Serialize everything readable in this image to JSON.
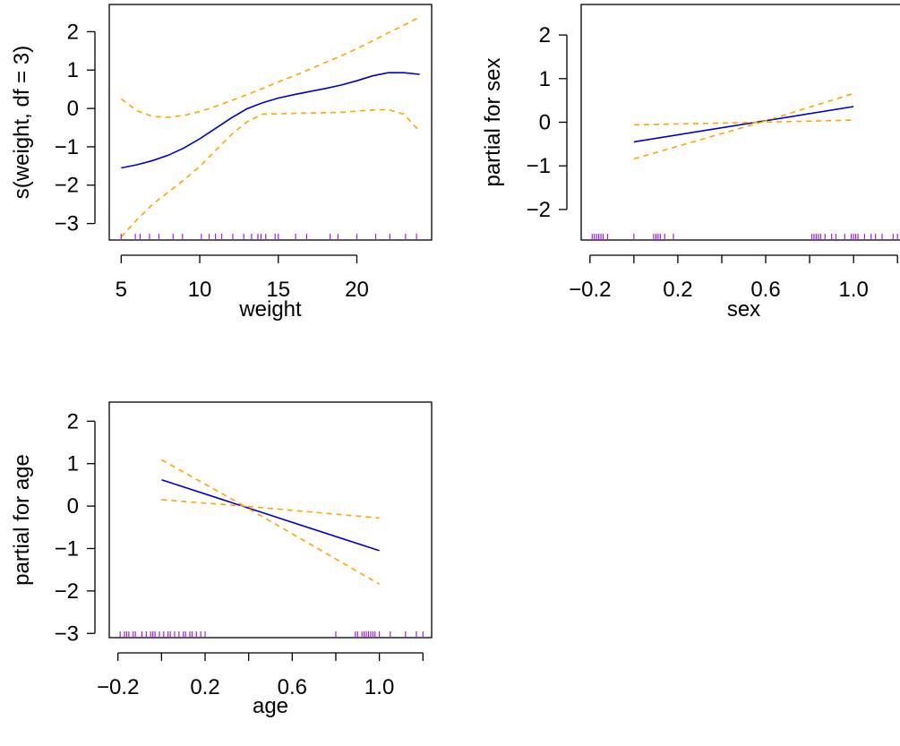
{
  "colors": {
    "fit": "#0000CD",
    "band": "#FFA500",
    "rug": "#A020F0",
    "axis": "#000000"
  },
  "chart_data": [
    {
      "type": "line",
      "xlabel": "weight",
      "ylabel": "s(weight, df = 3)",
      "xlim": [
        4.24,
        24.76
      ],
      "ylim": [
        -3.43,
        2.71
      ],
      "xticks": [
        5,
        10,
        15,
        20
      ],
      "xtick_labels": [
        "5",
        "10",
        "15",
        "20"
      ],
      "yticks": [
        -3,
        -2,
        -1,
        0,
        1,
        2
      ],
      "ytick_labels": [
        "−3",
        "−2",
        "−1",
        "0",
        "1",
        "2"
      ],
      "series": [
        {
          "role": "fit",
          "x": [
            5,
            6,
            7,
            8,
            9,
            10,
            11,
            12,
            13,
            14,
            15,
            16,
            17,
            18,
            19,
            20,
            21,
            22,
            23,
            24
          ],
          "y": [
            -1.55,
            -1.47,
            -1.36,
            -1.22,
            -1.03,
            -0.79,
            -0.52,
            -0.25,
            -0.01,
            0.15,
            0.27,
            0.36,
            0.44,
            0.52,
            0.61,
            0.72,
            0.85,
            0.93,
            0.93,
            0.89
          ]
        },
        {
          "role": "upper",
          "x": [
            5,
            6,
            7,
            8,
            9,
            10,
            11,
            12,
            13,
            14,
            15,
            16,
            17,
            18,
            19,
            20,
            21,
            22,
            23,
            24
          ],
          "y": [
            0.25,
            -0.06,
            -0.21,
            -0.23,
            -0.18,
            -0.08,
            0.05,
            0.2,
            0.36,
            0.52,
            0.69,
            0.85,
            1.02,
            1.2,
            1.37,
            1.56,
            1.76,
            1.97,
            2.17,
            2.38
          ]
        },
        {
          "role": "lower",
          "x": [
            5,
            6,
            7,
            8,
            9,
            10,
            11,
            12,
            13,
            14,
            15,
            16,
            17,
            18,
            19,
            20,
            21,
            22,
            23,
            24
          ],
          "y": [
            -3.35,
            -2.9,
            -2.5,
            -2.18,
            -1.86,
            -1.51,
            -1.1,
            -0.69,
            -0.35,
            -0.15,
            -0.14,
            -0.13,
            -0.12,
            -0.11,
            -0.1,
            -0.07,
            -0.04,
            -0.03,
            -0.15,
            -0.6
          ]
        }
      ],
      "rug": [
        5.0,
        5.9,
        6.2,
        6.8,
        7.4,
        8.3,
        8.9,
        10.1,
        10.6,
        11.0,
        11.4,
        12.1,
        12.8,
        13.3,
        13.7,
        13.9,
        14.2,
        14.8,
        15.0,
        16.1,
        16.8,
        18.3,
        18.8,
        20.0,
        21.2,
        22.1,
        23.1,
        23.8
      ]
    },
    {
      "type": "line",
      "xlabel": "sex",
      "ylabel": "partial for sex",
      "xlim": [
        -0.24,
        1.24
      ],
      "ylim": [
        -2.7,
        2.7
      ],
      "xticks": [
        -0.2,
        0.0,
        0.2,
        0.4,
        0.6,
        0.8,
        1.0,
        1.2
      ],
      "xtick_labels": [
        "−0.2",
        "",
        "0.2",
        "",
        "0.6",
        "",
        "1.0",
        ""
      ],
      "yticks": [
        -2,
        -1,
        0,
        1,
        2
      ],
      "ytick_labels": [
        "−2",
        "−1",
        "0",
        "1",
        "2"
      ],
      "series": [
        {
          "role": "fit",
          "x": [
            0.0,
            1.0
          ],
          "y": [
            -0.45,
            0.36
          ]
        },
        {
          "role": "upper",
          "x": [
            0.0,
            0.58,
            1.0
          ],
          "y": [
            -0.06,
            0.0,
            0.66
          ]
        },
        {
          "role": "lower",
          "x": [
            0.0,
            0.58,
            1.0
          ],
          "y": [
            -0.84,
            0.0,
            0.05
          ]
        }
      ],
      "rug": [
        -0.19,
        -0.18,
        -0.17,
        -0.16,
        -0.15,
        -0.14,
        -0.12,
        0.0,
        0.09,
        0.1,
        0.11,
        0.12,
        0.14,
        0.18,
        0.81,
        0.82,
        0.83,
        0.84,
        0.85,
        0.87,
        0.9,
        0.92,
        0.96,
        0.99,
        1.0,
        1.01,
        1.02,
        1.05,
        1.08,
        1.1,
        1.13,
        1.18,
        1.2
      ]
    },
    {
      "type": "line",
      "xlabel": "age",
      "ylabel": "partial for age",
      "xlim": [
        -0.24,
        1.24
      ],
      "ylim": [
        -3.1,
        2.45
      ],
      "xticks": [
        -0.2,
        0.0,
        0.2,
        0.4,
        0.6,
        0.8,
        1.0,
        1.2
      ],
      "xtick_labels": [
        "−0.2",
        "",
        "0.2",
        "",
        "0.6",
        "",
        "1.0",
        ""
      ],
      "yticks": [
        -3,
        -2,
        -1,
        0,
        1,
        2
      ],
      "ytick_labels": [
        "−3",
        "−2",
        "−1",
        "0",
        "1",
        "2"
      ],
      "series": [
        {
          "role": "fit",
          "x": [
            0.0,
            1.0
          ],
          "y": [
            0.62,
            -1.05
          ]
        },
        {
          "role": "upper",
          "x": [
            0.0,
            0.38,
            1.0
          ],
          "y": [
            1.09,
            0.0,
            -0.28
          ]
        },
        {
          "role": "lower",
          "x": [
            0.0,
            0.38,
            1.0
          ],
          "y": [
            0.15,
            0.0,
            -1.84
          ]
        }
      ],
      "rug": [
        -0.19,
        -0.17,
        -0.16,
        -0.15,
        -0.13,
        -0.12,
        -0.09,
        -0.07,
        -0.05,
        -0.04,
        -0.03,
        -0.01,
        0.01,
        0.03,
        0.04,
        0.06,
        0.08,
        0.1,
        0.11,
        0.13,
        0.14,
        0.16,
        0.18,
        0.2,
        0.8,
        0.89,
        0.9,
        0.92,
        0.93,
        0.94,
        0.95,
        0.96,
        0.97,
        0.98,
        1.0,
        1.05,
        1.12,
        1.17,
        1.2
      ]
    }
  ]
}
